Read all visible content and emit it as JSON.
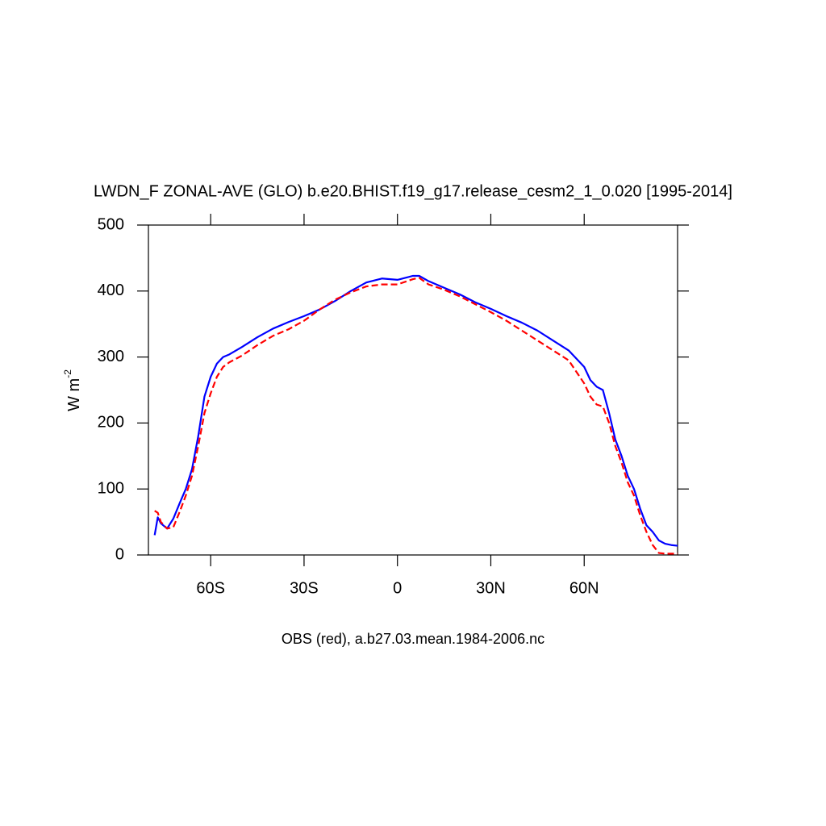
{
  "chart_data": {
    "type": "line",
    "title": "LWDN_F ZONAL-AVE (GLO) b.e20.BHIST.f19_g17.release_cesm2_1_0.020 [1995-2014]",
    "xlabel": "OBS (red), a.b27.03.mean.1984-2006.nc",
    "ylabel": "W m",
    "ylabel_exponent": "-2",
    "x": [
      -78,
      -77,
      -76,
      -74,
      -72,
      -70,
      -68,
      -66,
      -64,
      -62,
      -60,
      -58,
      -56,
      -54,
      -50,
      -45,
      -40,
      -35,
      -30,
      -25,
      -20,
      -15,
      -10,
      -5,
      0,
      5,
      7,
      10,
      15,
      20,
      25,
      30,
      35,
      40,
      45,
      50,
      55,
      60,
      62,
      64,
      66,
      68,
      70,
      72,
      74,
      76,
      78,
      80,
      82,
      84,
      86,
      88,
      90
    ],
    "series": [
      {
        "color": "#0000ff",
        "dashed": false,
        "values": [
          30,
          57,
          48,
          40,
          55,
          78,
          100,
          130,
          180,
          240,
          270,
          290,
          300,
          304,
          315,
          330,
          343,
          353,
          362,
          372,
          385,
          400,
          413,
          419,
          417,
          423,
          423,
          415,
          405,
          395,
          383,
          373,
          362,
          352,
          340,
          325,
          310,
          285,
          265,
          255,
          250,
          215,
          175,
          150,
          120,
          100,
          70,
          45,
          35,
          22,
          17,
          15,
          14
        ]
      },
      {
        "color": "#ff0000",
        "dashed": true,
        "values": [
          67,
          64,
          50,
          40,
          42,
          65,
          90,
          120,
          165,
          215,
          245,
          270,
          285,
          292,
          302,
          318,
          332,
          342,
          355,
          372,
          387,
          398,
          407,
          410,
          410,
          418,
          420,
          410,
          402,
          392,
          380,
          368,
          355,
          340,
          325,
          310,
          295,
          260,
          240,
          228,
          225,
          200,
          165,
          140,
          110,
          90,
          60,
          35,
          15,
          3,
          2,
          2,
          2
        ]
      }
    ],
    "xlim": [
      -80,
      90
    ],
    "xticks": [
      {
        "value": -60,
        "label": "60S"
      },
      {
        "value": -30,
        "label": "30S"
      },
      0,
      {
        "value": 30,
        "label": "30N"
      },
      {
        "value": 60,
        "label": "60N"
      }
    ],
    "ylim": [
      0,
      500
    ],
    "yticks": [
      0,
      100,
      200,
      300,
      400,
      500
    ]
  }
}
